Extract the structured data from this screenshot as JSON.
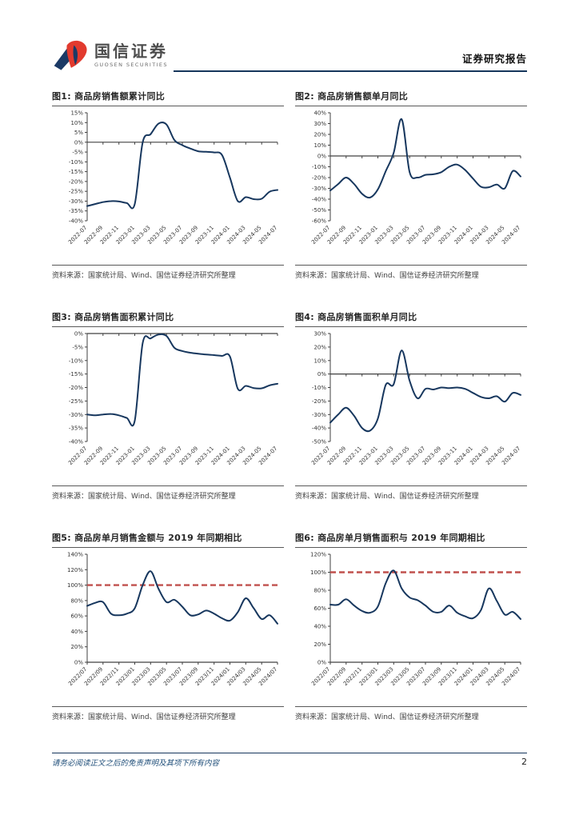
{
  "header": {
    "logo_cn": "国信证券",
    "logo_en": "GUOSEN SECURITIES",
    "report_type": "证券研究报告",
    "accent_color": "#16365c",
    "logo_red": "#e23a2e",
    "logo_blue": "#1b3a66"
  },
  "chart_data": [
    {
      "type": "line",
      "title": "图1: 商品房销售额累计同比",
      "source": "资料来源：国家统计局、Wind、国信证券经济研究所整理",
      "ylim": [
        -40,
        15
      ],
      "y_step": 5,
      "y_unit": "%",
      "x_labels": [
        "2022-07",
        "2022-09",
        "2022-11",
        "2023-01",
        "2023-03",
        "2023-05",
        "2023-07",
        "2023-09",
        "2023-11",
        "2024-01",
        "2024-03",
        "2024-05",
        "2024-07"
      ],
      "values": [
        -32.5,
        -31.5,
        -30.5,
        -30,
        -30.2,
        -31,
        -31.5,
        -0.1,
        4.1,
        9.5,
        9,
        1.1,
        -1.5,
        -3.2,
        -4.6,
        -4.9,
        -5.2,
        -6.5,
        -18,
        -30,
        -28,
        -29,
        -28.8,
        -25.2,
        -24.3
      ],
      "line_color": "#17375e",
      "ref_line": null,
      "ref_color": null
    },
    {
      "type": "line",
      "title": "图2: 商品房销售额单月同比",
      "source": "资料来源：国家统计局、Wind、国信证券经济研究所整理",
      "ylim": [
        -60,
        40
      ],
      "y_step": 10,
      "y_unit": "%",
      "x_labels": [
        "2022-07",
        "2022-09",
        "2022-11",
        "2023-01",
        "2023-03",
        "2023-05",
        "2023-07",
        "2023-09",
        "2023-11",
        "2024-01",
        "2024-03",
        "2024-05",
        "2024-07"
      ],
      "values": [
        -32,
        -26,
        -20,
        -26,
        -35,
        -38.5,
        -31,
        -14,
        3,
        34,
        -15,
        -20,
        -17.5,
        -17,
        -15,
        -10,
        -8,
        -13,
        -21,
        -28.5,
        -29,
        -26.5,
        -30,
        -14,
        -19
      ],
      "line_color": "#17375e",
      "ref_line": null,
      "ref_color": null
    },
    {
      "type": "line",
      "title": "图3: 商品房销售面积累计同比",
      "source": "资料来源：国家统计局、Wind、国信证券经济研究所整理",
      "ylim": [
        -40,
        0
      ],
      "y_step": 5,
      "y_unit": "%",
      "x_labels": [
        "2022-07",
        "2022-09",
        "2022-11",
        "2023-01",
        "2023-03",
        "2023-05",
        "2023-07",
        "2023-09",
        "2023-11",
        "2024-01",
        "2024-03",
        "2024-05",
        "2024-07"
      ],
      "values": [
        -30,
        -30.3,
        -30,
        -29.8,
        -30.3,
        -31.3,
        -32.3,
        -3.6,
        -1.8,
        -0.4,
        -0.9,
        -5.3,
        -6.5,
        -7.1,
        -7.5,
        -7.8,
        -8,
        -8.3,
        -8.5,
        -20.5,
        -19.4,
        -20.2,
        -20.3,
        -19.2,
        -18.6
      ],
      "line_color": "#17375e",
      "ref_line": null,
      "ref_color": null
    },
    {
      "type": "line",
      "title": "图4: 商品房销售面积单月同比",
      "source": "资料来源：国家统计局、Wind、国信证券经济研究所整理",
      "ylim": [
        -50,
        30
      ],
      "y_step": 10,
      "y_unit": "%",
      "x_labels": [
        "2022-07",
        "2022-09",
        "2022-11",
        "2023-01",
        "2023-03",
        "2023-05",
        "2023-07",
        "2023-09",
        "2023-11",
        "2024-01",
        "2024-03",
        "2024-05",
        "2024-07"
      ],
      "values": [
        -36,
        -30,
        -25,
        -31,
        -40,
        -42,
        -33,
        -8,
        -7.5,
        17.5,
        -5,
        -18,
        -11,
        -11.5,
        -10,
        -10.5,
        -10,
        -11,
        -14,
        -17,
        -18,
        -16.5,
        -20.5,
        -14,
        -15.5
      ],
      "line_color": "#17375e",
      "ref_line": null,
      "ref_color": null
    },
    {
      "type": "line",
      "title": "图5: 商品房单月销售金额与 2019 年同期相比",
      "source": "资料来源：国家统计局、Wind、国信证券经济研究所整理",
      "ylim": [
        0,
        140
      ],
      "y_step": 20,
      "y_unit": "%",
      "x_labels": [
        "2022/07",
        "2022/09",
        "2022/11",
        "2023/01",
        "2023/03",
        "2023/05",
        "2023/07",
        "2023/09",
        "2023/11",
        "2024/01",
        "2024/03",
        "2024/05",
        "2024/07"
      ],
      "values": [
        73,
        77,
        78,
        63,
        61,
        63,
        70,
        100,
        118,
        95,
        78,
        81,
        72,
        61,
        62,
        67,
        63,
        57,
        54,
        65,
        83,
        70,
        56,
        61,
        50
      ],
      "line_color": "#17375e",
      "ref_line": 100,
      "ref_color": "#c0504d"
    },
    {
      "type": "line",
      "title": "图6: 商品房单月销售面积与 2019 年同期相比",
      "source": "资料来源：国家统计局、Wind、国信证券经济研究所整理",
      "ylim": [
        0,
        120
      ],
      "y_step": 20,
      "y_unit": "%",
      "x_labels": [
        "2022/07",
        "2022/09",
        "2022/11",
        "2023/01",
        "2023/03",
        "2023/05",
        "2023/07",
        "2023/09",
        "2023/11",
        "2024/01",
        "2024/03",
        "2024/05",
        "2024/07"
      ],
      "values": [
        64,
        64,
        70,
        63,
        57,
        55,
        62,
        88,
        102,
        82,
        72,
        69,
        63,
        56,
        56,
        63,
        55,
        51,
        49,
        58,
        82,
        68,
        53,
        56,
        48
      ],
      "line_color": "#17375e",
      "ref_line": 100,
      "ref_color": "#c0504d"
    }
  ],
  "footer": {
    "disclaimer": "请务必阅读正文之后的免责声明及其项下所有内容",
    "page_number": "2"
  }
}
